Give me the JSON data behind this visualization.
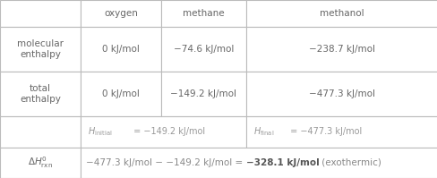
{
  "figsize": [
    4.89,
    1.99
  ],
  "dpi": 100,
  "bg_color": "#ffffff",
  "grid_color": "#bbbbbb",
  "col_headers": [
    "oxygen",
    "methane",
    "methanol"
  ],
  "text_color": "#666666",
  "font_size": 7.5
}
